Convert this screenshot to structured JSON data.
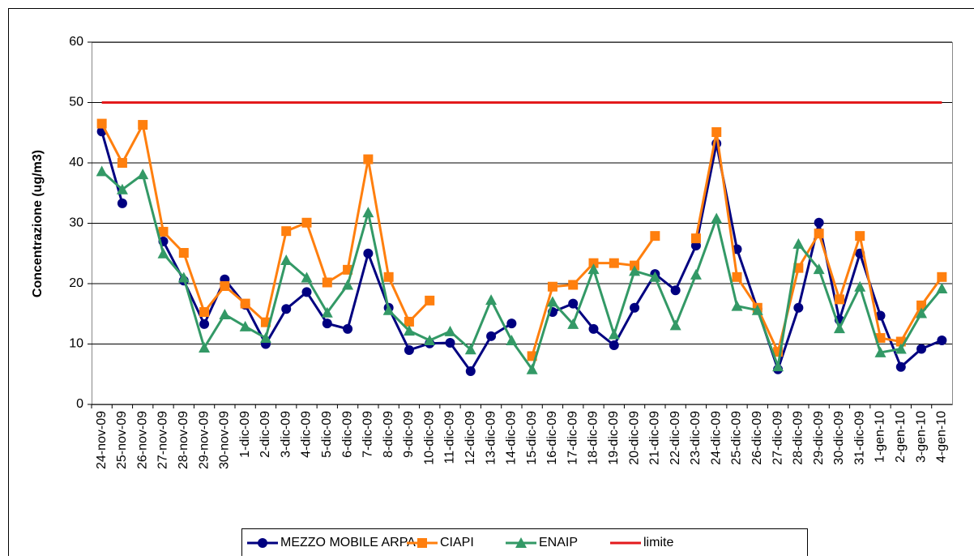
{
  "chart_data": {
    "type": "line",
    "y_label": "Concentrazione (ug/m3)",
    "categories": [
      "24-nov-09",
      "25-nov-09",
      "26-nov-09",
      "27-nov-09",
      "28-nov-09",
      "29-nov-09",
      "30-nov-09",
      "1-dic-09",
      "2-dic-09",
      "3-dic-09",
      "4-dic-09",
      "5-dic-09",
      "6-dic-09",
      "7-dic-09",
      "8-dic-09",
      "9-dic-09",
      "10-dic-09",
      "11-dic-09",
      "12-dic-09",
      "13-dic-09",
      "14-dic-09",
      "15-dic-09",
      "16-dic-09",
      "17-dic-09",
      "18-dic-09",
      "19-dic-09",
      "20-dic-09",
      "21-dic-09",
      "22-dic-09",
      "23-dic-09",
      "24-dic-09",
      "25-dic-09",
      "26-dic-09",
      "27-dic-09",
      "28-dic-09",
      "29-dic-09",
      "30-dic-09",
      "31-dic-09",
      "1-gen-10",
      "2-gen-10",
      "3-gen-10",
      "4-gen-10"
    ],
    "series": [
      {
        "name": "MEZZO MOBILE ARPA",
        "color": "#000080",
        "marker": "circle",
        "values": [
          45.2,
          33.3,
          null,
          27.0,
          20.5,
          13.3,
          20.7,
          16.5,
          10.0,
          15.8,
          18.6,
          13.4,
          12.5,
          25.0,
          16.0,
          9.0,
          10.1,
          10.2,
          5.5,
          11.3,
          13.4,
          null,
          15.3,
          16.7,
          12.5,
          9.8,
          16.0,
          21.6,
          18.9,
          26.3,
          43.2,
          25.7,
          15.8,
          5.8,
          16.0,
          30.1,
          14.0,
          25.0,
          14.7,
          6.2,
          9.2,
          10.6
        ]
      },
      {
        "name": "CIAPI",
        "color": "#ff7f0e",
        "marker": "square",
        "values": [
          46.5,
          40.0,
          46.3,
          28.6,
          25.1,
          15.3,
          19.6,
          16.7,
          13.6,
          28.7,
          30.1,
          20.2,
          22.3,
          40.6,
          21.1,
          13.7,
          17.2,
          null,
          null,
          null,
          null,
          8.0,
          19.5,
          19.8,
          23.4,
          23.4,
          23.0,
          27.9,
          null,
          27.5,
          45.1,
          21.1,
          16.0,
          8.7,
          22.6,
          28.3,
          17.4,
          27.9,
          11.0,
          10.4,
          16.4,
          21.1
        ]
      },
      {
        "name": "ENAIP",
        "color": "#339966",
        "marker": "triangle",
        "values": [
          38.6,
          35.6,
          38.1,
          25.0,
          21.0,
          9.4,
          14.9,
          12.9,
          11.0,
          23.9,
          21.0,
          15.2,
          19.8,
          31.8,
          15.6,
          12.2,
          10.6,
          12.1,
          9.1,
          17.3,
          10.6,
          5.8,
          17.0,
          13.3,
          22.4,
          11.6,
          22.1,
          21.1,
          13.1,
          21.5,
          30.8,
          16.3,
          15.6,
          6.3,
          26.6,
          22.4,
          12.6,
          19.5,
          8.6,
          9.2,
          15.1,
          19.2
        ]
      },
      {
        "name": "limite",
        "color": "#e31a1c",
        "marker": "none",
        "values": [
          50,
          50,
          50,
          50,
          50,
          50,
          50,
          50,
          50,
          50,
          50,
          50,
          50,
          50,
          50,
          50,
          50,
          50,
          50,
          50,
          50,
          50,
          50,
          50,
          50,
          50,
          50,
          50,
          50,
          50,
          50,
          50,
          50,
          50,
          50,
          50,
          50,
          50,
          50,
          50,
          50,
          50
        ]
      }
    ],
    "ylim": [
      0,
      60
    ],
    "yticks": [
      0,
      10,
      20,
      30,
      40,
      50,
      60
    ],
    "grid": true,
    "legend": "bottom"
  }
}
